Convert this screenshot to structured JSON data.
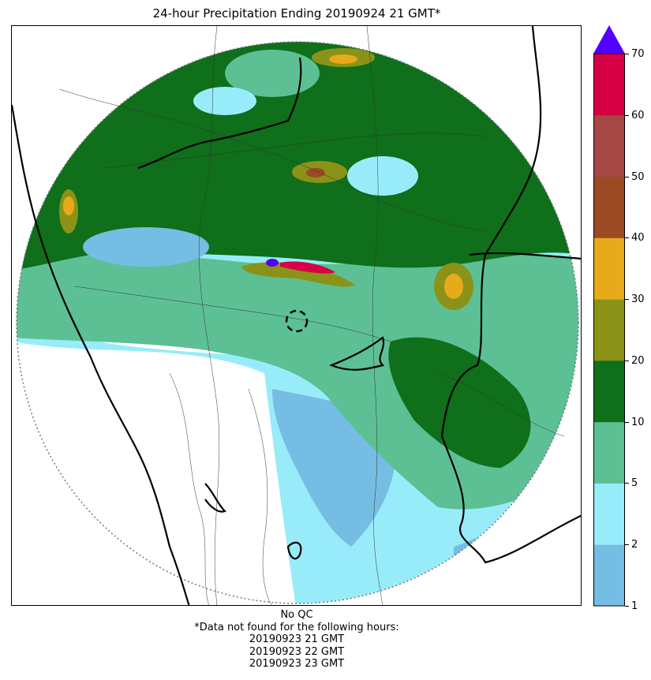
{
  "title": "24-hour Precipitation Ending 20190924 21 GMT*",
  "colorbar": {
    "ticks": [
      "1",
      "2",
      "5",
      "10",
      "20",
      "30",
      "40",
      "50",
      "60",
      "70"
    ],
    "colors": [
      "#75bde3",
      "#98ecfa",
      "#5cc094",
      "#0f6f1a",
      "#8a9318",
      "#e7aa1a",
      "#9b4a24",
      "#a54744",
      "#d50045"
    ],
    "extend_color": "#5200ff"
  },
  "footer": {
    "qc": "No QC",
    "note": "*Data not found for the following hours:",
    "hours": [
      "20190923 21 GMT",
      "20190923 22 GMT",
      "20190923 23 GMT"
    ]
  }
}
